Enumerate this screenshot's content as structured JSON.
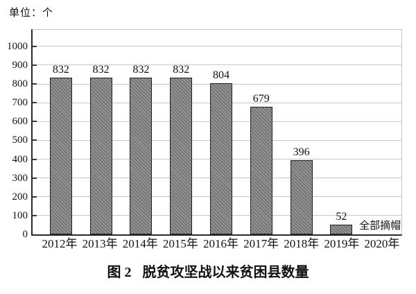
{
  "figure": {
    "unit_label": "单位：个",
    "caption_prefix": "图 2",
    "caption_title": "脱贫攻坚战以来贫困县数量"
  },
  "chart_data": {
    "type": "bar",
    "title": "图 2 脱贫攻坚战以来贫困县数量",
    "unit_label": "单位：个",
    "ylabel_unit": "个",
    "categories": [
      "2012年",
      "2013年",
      "2014年",
      "2015年",
      "2016年",
      "2017年",
      "2018年",
      "2019年",
      "2020年"
    ],
    "values": [
      832,
      832,
      832,
      832,
      804,
      679,
      396,
      52,
      null
    ],
    "bar_labels": [
      "832",
      "832",
      "832",
      "832",
      "804",
      "679",
      "396",
      "52",
      ""
    ],
    "annotation": {
      "text": "全部摘帽",
      "near_category": "2020年"
    },
    "yticks": [
      0,
      100,
      200,
      300,
      400,
      500,
      600,
      700,
      800,
      900,
      1000
    ],
    "ylim": [
      0,
      1088
    ],
    "grid": "horizontal",
    "legend": "none",
    "bar_fill_color": "#929292",
    "bar_border_color": "#1f1f1f",
    "hatch": "diagonal",
    "gridline_color": "#c6c6c6",
    "axis_color": "#2a2a2a"
  }
}
